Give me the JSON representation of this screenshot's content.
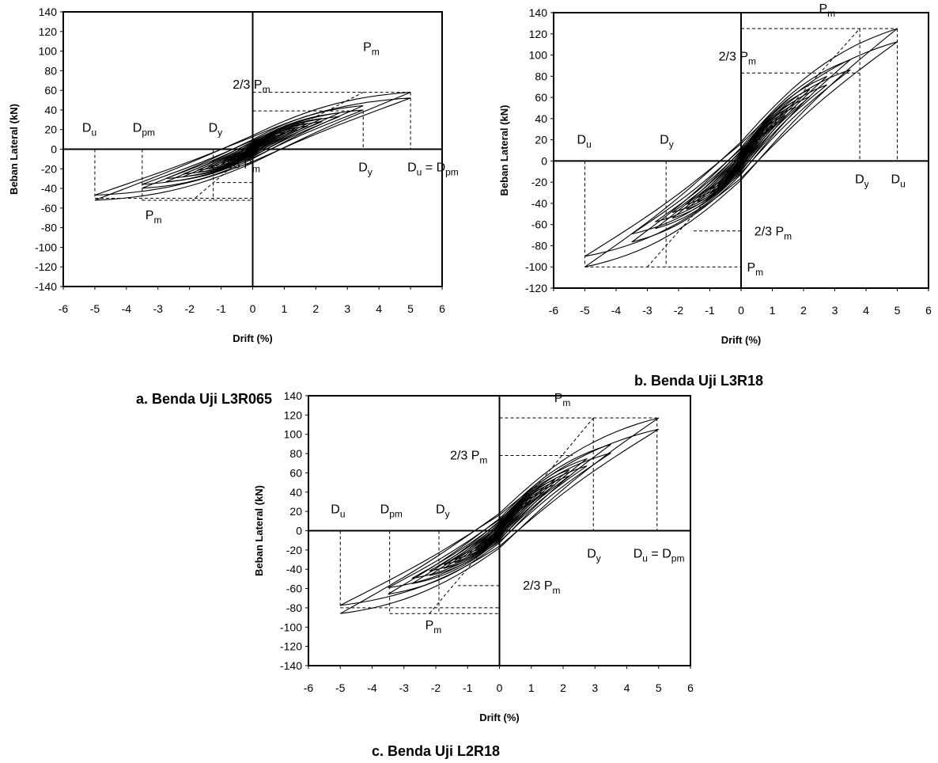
{
  "chart_data": [
    {
      "type": "line",
      "caption": "a. Benda Uji L3R065",
      "xlabel": "Drift (%)",
      "ylabel": "Beban Lateral (kN)",
      "xlim": [
        -6,
        6
      ],
      "ylim": [
        -140,
        140
      ],
      "xticks": [
        -6,
        -5,
        -4,
        -3,
        -2,
        -1,
        0,
        1,
        2,
        3,
        4,
        5,
        6
      ],
      "yticks": [
        140,
        120,
        100,
        80,
        60,
        40,
        20,
        0,
        -20,
        -40,
        -60,
        -80,
        -100,
        -120,
        -140
      ],
      "loop_amplitudes": [
        0.25,
        0.35,
        0.5,
        0.75,
        1.0,
        1.4,
        1.75,
        2.2,
        2.75,
        3.5,
        5.0
      ],
      "peak_load": [
        58,
        -52
      ],
      "pinch_load": [
        10,
        -10
      ],
      "annotations": [
        {
          "key": "pm_pos",
          "base": "P",
          "sub": "m",
          "x": 5.0,
          "y": 58
        },
        {
          "key": "two_third_pos",
          "base": "2/3  P",
          "sub": "m",
          "x": 3.5,
          "y": 39
        },
        {
          "key": "du_neg",
          "base": "D",
          "sub": "u",
          "x": -5.0,
          "y": 0
        },
        {
          "key": "dpm_neg",
          "base": "D",
          "sub": "pm",
          "x": -3.5,
          "y": 0
        },
        {
          "key": "dy_neg",
          "base": "D",
          "sub": "y",
          "x": -1.25,
          "y": 0
        },
        {
          "key": "dy_pos",
          "base": "D",
          "sub": "y",
          "x": 3.5,
          "y": 0
        },
        {
          "key": "du_pos",
          "base": "D",
          "sub": "u",
          "tail": " = D",
          "sub2": "pm",
          "x": 5.0,
          "y": 0
        },
        {
          "key": "two_third_neg",
          "base": "2/3  P",
          "sub": "m",
          "x": -1.25,
          "y": -34
        },
        {
          "key": "pm_neg",
          "base": "P",
          "sub": "m",
          "x": -3.5,
          "y": -52
        }
      ],
      "guide_lines": [
        [
          [
            0,
            58
          ],
          [
            5.0,
            58
          ]
        ],
        [
          [
            5.0,
            58
          ],
          [
            5.0,
            0
          ]
        ],
        [
          [
            0,
            39
          ],
          [
            3.5,
            39
          ]
        ],
        [
          [
            3.5,
            39
          ],
          [
            3.5,
            0
          ]
        ],
        [
          [
            0,
            0
          ],
          [
            3.5,
            58
          ]
        ],
        [
          [
            -5.0,
            0
          ],
          [
            -5.0,
            -50
          ]
        ],
        [
          [
            -3.5,
            0
          ],
          [
            -3.5,
            -52
          ]
        ],
        [
          [
            -1.25,
            0
          ],
          [
            -1.25,
            -52
          ]
        ],
        [
          [
            -5.0,
            -50
          ],
          [
            0,
            -50
          ]
        ],
        [
          [
            -3.5,
            -52
          ],
          [
            0,
            -52
          ]
        ],
        [
          [
            0,
            -34
          ],
          [
            -1.25,
            -34
          ]
        ],
        [
          [
            0,
            0
          ],
          [
            -1.9,
            -52
          ]
        ]
      ]
    },
    {
      "type": "line",
      "caption": "b. Benda Uji L3R18",
      "xlabel": "Drift (%)",
      "ylabel": "Beban Lateral (kN)",
      "xlim": [
        -6,
        6
      ],
      "ylim": [
        -120,
        140
      ],
      "xticks": [
        -6,
        -5,
        -4,
        -3,
        -2,
        -1,
        0,
        1,
        2,
        3,
        4,
        5,
        6
      ],
      "yticks": [
        140,
        120,
        100,
        80,
        60,
        40,
        20,
        0,
        -20,
        -40,
        -60,
        -80,
        -100,
        -120
      ],
      "loop_amplitudes": [
        0.2,
        0.35,
        0.5,
        0.75,
        1.0,
        1.4,
        1.75,
        2.2,
        2.75,
        3.5,
        5.0
      ],
      "peak_load": [
        125,
        -100
      ],
      "pinch_load": [
        14,
        -14
      ],
      "annotations": [
        {
          "key": "pm_pos",
          "base": "P",
          "sub": "m",
          "x": 5.0,
          "y": 125
        },
        {
          "key": "two_third_pos",
          "base": "2/3  P",
          "sub": "m",
          "x": 2.75,
          "y": 83
        },
        {
          "key": "du_neg",
          "base": "D",
          "sub": "u",
          "x": -5.0,
          "y": 0
        },
        {
          "key": "dy_neg",
          "base": "D",
          "sub": "y",
          "x": -2.4,
          "y": 0
        },
        {
          "key": "dy_pos",
          "base": "D",
          "sub": "y",
          "x": 3.8,
          "y": 0
        },
        {
          "key": "du_pos",
          "base": "D",
          "sub": "u",
          "x": 5.0,
          "y": 0
        },
        {
          "key": "two_third_neg",
          "base": "2/3  P",
          "sub": "m",
          "x": -1.6,
          "y": -66
        },
        {
          "key": "pm_neg",
          "base": "P",
          "sub": "m",
          "x": -5.0,
          "y": -100
        }
      ],
      "guide_lines": [
        [
          [
            0,
            125
          ],
          [
            5.0,
            125
          ]
        ],
        [
          [
            5.0,
            125
          ],
          [
            5.0,
            0
          ]
        ],
        [
          [
            0,
            83
          ],
          [
            3.8,
            83
          ]
        ],
        [
          [
            3.8,
            125
          ],
          [
            3.8,
            0
          ]
        ],
        [
          [
            0,
            0
          ],
          [
            3.8,
            125
          ]
        ],
        [
          [
            -5.0,
            0
          ],
          [
            -5.0,
            -100
          ]
        ],
        [
          [
            -2.4,
            0
          ],
          [
            -2.4,
            -100
          ]
        ],
        [
          [
            -5.0,
            -100
          ],
          [
            0,
            -100
          ]
        ],
        [
          [
            0,
            -66
          ],
          [
            -1.6,
            -66
          ]
        ],
        [
          [
            0,
            0
          ],
          [
            -3.0,
            -100
          ]
        ]
      ]
    },
    {
      "type": "line",
      "caption": "c. Benda Uji L2R18",
      "xlabel": "Drift (%)",
      "ylabel": "Beban Lateral (kN)",
      "xlim": [
        -6,
        6
      ],
      "ylim": [
        -140,
        140
      ],
      "xticks": [
        -6,
        -5,
        -4,
        -3,
        -2,
        -1,
        0,
        1,
        2,
        3,
        4,
        5,
        6
      ],
      "yticks": [
        140,
        120,
        100,
        80,
        60,
        40,
        20,
        0,
        -20,
        -40,
        -60,
        -80,
        -100,
        -120,
        -140
      ],
      "loop_amplitudes": [
        0.2,
        0.35,
        0.5,
        0.75,
        1.0,
        1.4,
        1.75,
        2.2,
        2.75,
        3.5,
        5.0
      ],
      "peak_load": [
        117,
        -86
      ],
      "pinch_load": [
        14,
        -14
      ],
      "annotations": [
        {
          "key": "pm_pos",
          "base": "P",
          "sub": "m",
          "x": 4.95,
          "y": 117
        },
        {
          "key": "two_third_pos",
          "base": "2/3  P",
          "sub": "m",
          "x": 2.3,
          "y": 78
        },
        {
          "key": "du_neg",
          "base": "D",
          "sub": "u",
          "x": -5.0,
          "y": 0
        },
        {
          "key": "dpm_neg",
          "base": "D",
          "sub": "pm",
          "x": -3.45,
          "y": 0
        },
        {
          "key": "dy_neg",
          "base": "D",
          "sub": "y",
          "x": -1.9,
          "y": 0
        },
        {
          "key": "dy_pos",
          "base": "D",
          "sub": "y",
          "x": 2.95,
          "y": 0
        },
        {
          "key": "du_pos",
          "base": "D",
          "sub": "u",
          "tail": " = D",
          "sub2": "pm",
          "x": 4.95,
          "y": 0
        },
        {
          "key": "two_third_neg",
          "base": "2/3  P",
          "sub": "m",
          "x": -1.3,
          "y": -57
        },
        {
          "key": "pm_neg",
          "base": "P",
          "sub": "m",
          "x": -3.45,
          "y": -86
        }
      ],
      "guide_lines": [
        [
          [
            0,
            117
          ],
          [
            4.95,
            117
          ]
        ],
        [
          [
            4.95,
            117
          ],
          [
            4.95,
            0
          ]
        ],
        [
          [
            0,
            78
          ],
          [
            2.3,
            78
          ]
        ],
        [
          [
            2.95,
            117
          ],
          [
            2.95,
            0
          ]
        ],
        [
          [
            0,
            0
          ],
          [
            2.95,
            117
          ]
        ],
        [
          [
            -5.0,
            0
          ],
          [
            -5.0,
            -80
          ]
        ],
        [
          [
            -3.45,
            0
          ],
          [
            -3.45,
            -86
          ]
        ],
        [
          [
            -1.9,
            0
          ],
          [
            -1.9,
            -86
          ]
        ],
        [
          [
            -5.0,
            -80
          ],
          [
            0,
            -80
          ]
        ],
        [
          [
            -3.45,
            -86
          ],
          [
            0,
            -86
          ]
        ],
        [
          [
            0,
            -57
          ],
          [
            -1.3,
            -57
          ]
        ],
        [
          [
            0,
            0
          ],
          [
            -2.2,
            -86
          ]
        ]
      ]
    }
  ]
}
